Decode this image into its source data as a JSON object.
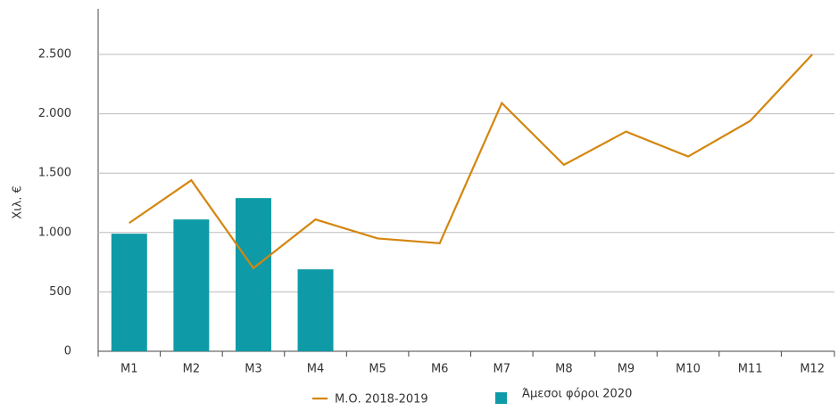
{
  "chart_data": {
    "type": "combo",
    "y_label": "Χιλ. €",
    "categories": [
      "M1",
      "M2",
      "M3",
      "M4",
      "M5",
      "M6",
      "M7",
      "M8",
      "M9",
      "M10",
      "M11",
      "M12"
    ],
    "series": [
      {
        "name": "Μ.Ο. 2018-2019",
        "type": "line",
        "color": "#d4860f",
        "values": [
          1080,
          1440,
          700,
          1110,
          950,
          910,
          2090,
          1570,
          1850,
          1640,
          1940,
          2500
        ]
      },
      {
        "name": "Άμεσοι φόροι 2020",
        "type": "bar",
        "color": "#0e9aa7",
        "values": [
          990,
          1110,
          1290,
          690,
          null,
          null,
          null,
          null,
          null,
          null,
          null,
          null
        ]
      }
    ],
    "ylim": [
      0,
      2750
    ],
    "yticks": [
      0,
      500,
      {
        "value": 1000,
        "label": "1.000"
      },
      {
        "value": 1500,
        "label": "1.500"
      },
      {
        "value": 2000,
        "label": "2.000"
      },
      {
        "value": 2500,
        "label": "2.500"
      }
    ],
    "grid": true
  }
}
